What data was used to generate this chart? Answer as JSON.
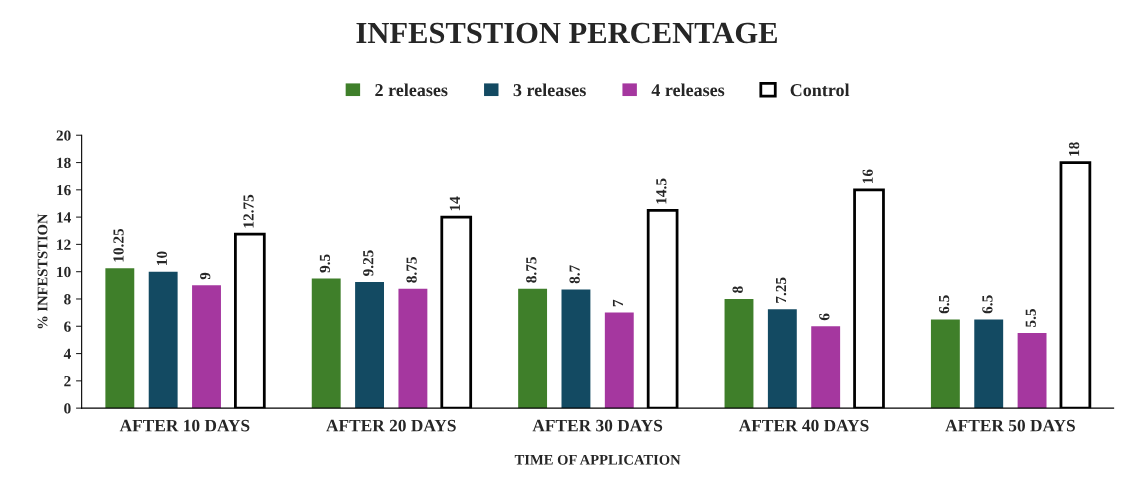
{
  "chart_data": {
    "type": "bar",
    "title": "INFESTSTION PERCENTAGE",
    "xlabel": "TIME OF APPLICATION",
    "ylabel": "% INFESTSTION",
    "categories": [
      "AFTER 10 DAYS",
      "AFTER 20 DAYS",
      "AFTER 30 DAYS",
      "AFTER 40 DAYS",
      "AFTER 50 DAYS"
    ],
    "series": [
      {
        "name": "2 releases",
        "color": "#3f7f2a",
        "values": [
          10.25,
          9.5,
          8.75,
          8,
          6.5
        ]
      },
      {
        "name": "3 releases",
        "color": "#134a62",
        "values": [
          10,
          9.25,
          8.7,
          7.25,
          6.5
        ]
      },
      {
        "name": "4 releases",
        "color": "#a5379f",
        "values": [
          9,
          8.75,
          7,
          6,
          5.5
        ]
      },
      {
        "name": "Control",
        "color": "#ffffff",
        "values": [
          12.75,
          14,
          14.5,
          16,
          18
        ]
      }
    ],
    "ylim": [
      0,
      20
    ],
    "yticks": [
      0,
      2,
      4,
      6,
      8,
      10,
      12,
      14,
      16,
      18,
      20
    ],
    "data_labels": true,
    "legend": "top",
    "grid": false
  }
}
